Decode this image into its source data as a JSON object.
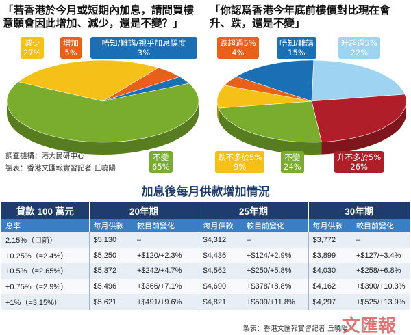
{
  "chart_data": [
    {
      "type": "pie",
      "title": "「若香港於今月或短期內加息，請問買樓意願會因此增加、減少，還是不變？」",
      "slices": [
        {
          "label": "不變",
          "value": 65,
          "display": "65%",
          "color": "#7aad2e"
        },
        {
          "label": "減少",
          "value": 27,
          "display": "27%",
          "color": "#f5c018"
        },
        {
          "label": "增加",
          "value": 5,
          "display": "5%",
          "color": "#e8601a"
        },
        {
          "label": "唔知/難講/視乎加息幅度",
          "value": 3,
          "display": "3%",
          "color": "#1a6fb5"
        }
      ]
    },
    {
      "type": "pie",
      "title": "「你認爲香港今年底前樓價對比現在會升、跌，還是不變」",
      "slices": [
        {
          "label": "升超過5%",
          "value": 22,
          "display": "22%",
          "color": "#9fd3f2"
        },
        {
          "label": "升不多於5%",
          "value": 26,
          "display": "26%",
          "color": "#b01e2a"
        },
        {
          "label": "不變",
          "value": 24,
          "display": "24%",
          "color": "#7aad2e"
        },
        {
          "label": "跌不多於5%",
          "value": 9,
          "display": "9%",
          "color": "#f5c018"
        },
        {
          "label": "跌超過5%",
          "value": 4,
          "display": "4%",
          "color": "#e8601a"
        },
        {
          "label": "唔知/難講",
          "value": 15,
          "display": "15%",
          "color": "#1a6fb5"
        }
      ]
    },
    {
      "type": "table",
      "title": "加息後每月供款增加情況",
      "corner": "貸款 100 萬元",
      "rate_header": "息率",
      "terms": [
        "20年期",
        "25年期",
        "30年期"
      ],
      "sub_headers": [
        "每月供款",
        "較目前變化"
      ],
      "rows": [
        {
          "rate": "2.15%（目前）",
          "cells": [
            "$5,130",
            "–",
            "$4,312",
            "–",
            "$3,772",
            "–"
          ]
        },
        {
          "rate": "+0.25%（=2.4%）",
          "cells": [
            "$5,250",
            "+$120/+2.3%",
            "$4,436",
            "+$124/+2.9%",
            "$3,899",
            "+$127/+3.4%"
          ]
        },
        {
          "rate": "+0.5%（=2.65%）",
          "cells": [
            "$5,372",
            "+$242/+4.7%",
            "$4,562",
            "+$250/+5.8%",
            "$4,030",
            "+$258/+6.8%"
          ]
        },
        {
          "rate": "+0.75%（=2.9%）",
          "cells": [
            "$5,496",
            "+$366/+7.1%",
            "$4,690",
            "+$378/+8.8%",
            "$4,162",
            "+$390/+10.3%"
          ]
        },
        {
          "rate": "+1%（=3.15%）",
          "cells": [
            "$5,621",
            "+$491/+9.6%",
            "$4,821",
            "+$509/+11.8%",
            "$4,297",
            "+$525/+13.9%"
          ]
        }
      ]
    }
  ],
  "source": {
    "org": "調查機構：港大民研中心",
    "maker": "製表：香港文匯報實習記者  丘曉陽"
  },
  "credit": "製表：香港文匯報實習記者  丘曉陽",
  "logo": "文匯報"
}
